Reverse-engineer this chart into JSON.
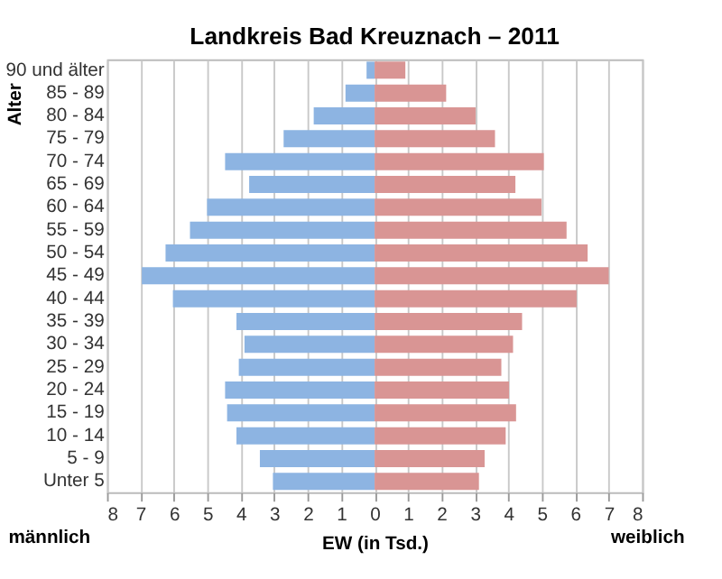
{
  "chart_data": {
    "type": "bar",
    "orientation": "horizontal",
    "title": "Landkreis Bad Kreuznach – 2011",
    "xlabel": "EW (in Tsd.)",
    "ylabel": "Alter",
    "categories": [
      "90 und älter",
      "85 - 89",
      "80 - 84",
      "75 - 79",
      "70 - 74",
      "65 - 69",
      "60 - 64",
      "55 - 59",
      "50 - 54",
      "45 - 49",
      "40 - 44",
      "35 - 39",
      "30 - 34",
      "25 - 29",
      "20 - 24",
      "15 - 19",
      "10 - 14",
      "5 - 9",
      "Unter 5"
    ],
    "series": [
      {
        "color": "#8db4e2",
        "values": [
          -0.24,
          -0.87,
          -1.82,
          -2.72,
          -4.47,
          -3.75,
          -5.01,
          -5.52,
          -6.25,
          -6.96,
          -6.03,
          -4.13,
          -3.89,
          -4.06,
          -4.47,
          -4.41,
          -4.13,
          -3.43,
          -3.04
        ]
      },
      {
        "color": "#d99594",
        "values": [
          0.92,
          2.14,
          3.02,
          3.6,
          5.06,
          4.21,
          4.99,
          5.74,
          6.37,
          7.0,
          6.04,
          4.41,
          4.14,
          3.79,
          4.02,
          4.23,
          3.92,
          3.29,
          3.12
        ]
      }
    ],
    "xlim": [
      -8,
      8
    ],
    "xticks": [
      {
        "value": -8,
        "label": "8"
      },
      {
        "value": -7,
        "label": "7"
      },
      {
        "value": -6,
        "label": "6"
      },
      {
        "value": -5,
        "label": "5"
      },
      {
        "value": -4,
        "label": "4"
      },
      {
        "value": -3,
        "label": "3"
      },
      {
        "value": -2,
        "label": "2"
      },
      {
        "value": -1,
        "label": "1"
      },
      0,
      1,
      2,
      3,
      4,
      5,
      6,
      7,
      8
    ],
    "grid": "x",
    "stacked": true,
    "annotations": [
      "männlich",
      "weiblich"
    ]
  }
}
